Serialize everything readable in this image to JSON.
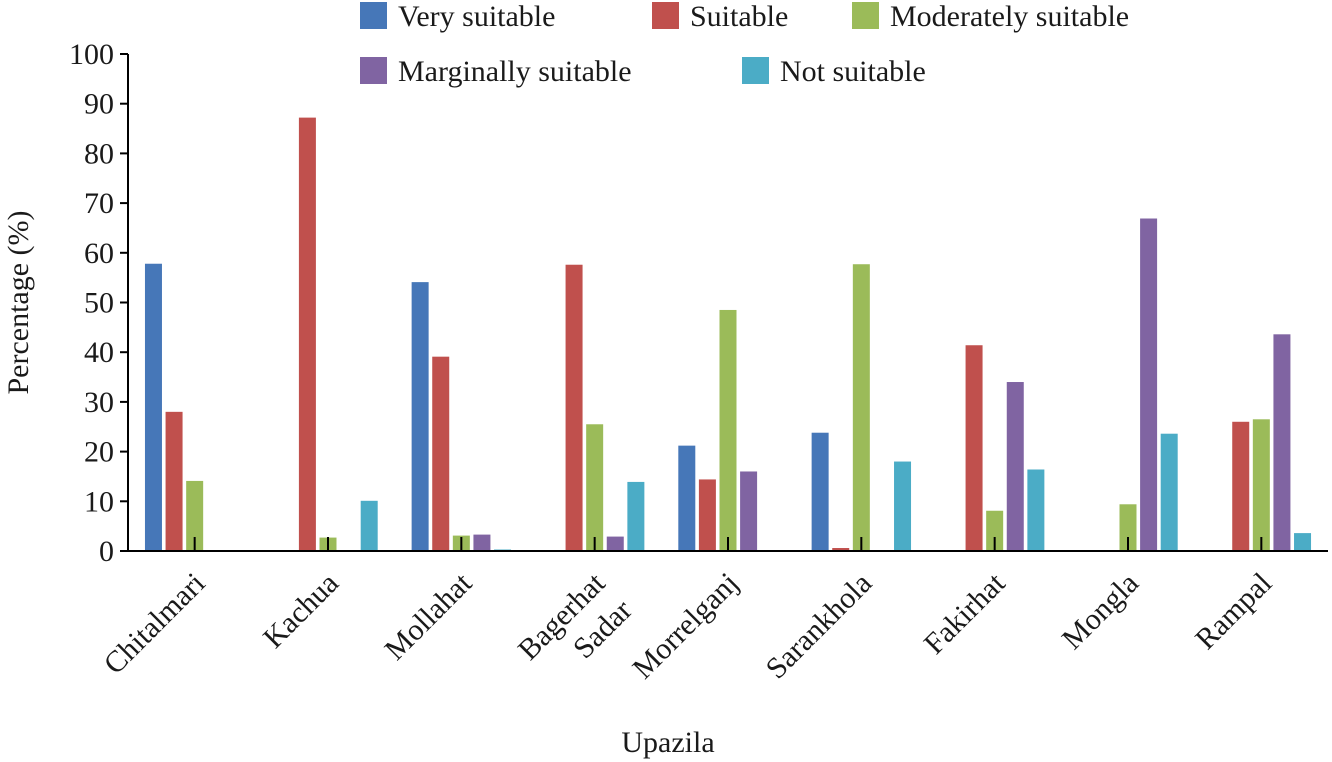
{
  "chart_data": {
    "type": "bar",
    "title": "",
    "xlabel": "Upazila",
    "ylabel": "Percentage (%)",
    "ylim": [
      0,
      100
    ],
    "yticks": [
      0,
      10,
      20,
      30,
      40,
      50,
      60,
      70,
      80,
      90,
      100
    ],
    "grid": false,
    "legend_position": "top",
    "categories": [
      [
        "Chitalmari"
      ],
      [
        "Kachua"
      ],
      [
        "Mollahat"
      ],
      [
        "Bagerhat",
        "Sadar"
      ],
      [
        "Morrelganj"
      ],
      [
        "Sarankhola"
      ],
      [
        "Fakirhat"
      ],
      [
        "Mongla"
      ],
      [
        "Rampal"
      ]
    ],
    "series": [
      {
        "name": "Very suitable",
        "color": "#4677b8",
        "values": [
          57.8,
          0,
          54.1,
          0,
          21.2,
          23.8,
          0,
          0,
          0
        ]
      },
      {
        "name": "Suitable",
        "color": "#c0504d",
        "values": [
          28.0,
          87.2,
          39.1,
          57.6,
          14.4,
          0.6,
          41.4,
          0,
          26.0
        ]
      },
      {
        "name": "Moderately suitable",
        "color": "#9bbb59",
        "values": [
          14.1,
          2.7,
          3.1,
          25.5,
          48.5,
          57.7,
          8.1,
          9.4,
          26.5
        ]
      },
      {
        "name": "Marginally suitable",
        "color": "#8064a2",
        "values": [
          0,
          0,
          3.3,
          2.9,
          16.0,
          0,
          34.0,
          66.9,
          43.6
        ]
      },
      {
        "name": "Not suitable",
        "color": "#4bacc6",
        "values": [
          0,
          10.1,
          0.3,
          13.9,
          0,
          18.0,
          16.4,
          23.6,
          3.6
        ]
      }
    ]
  }
}
